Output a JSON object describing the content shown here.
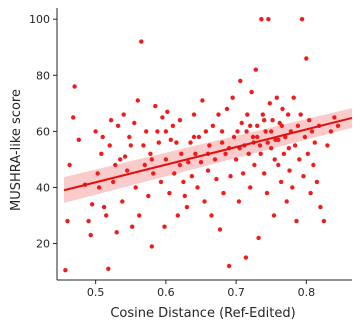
{
  "chart_data": {
    "type": "scatter",
    "xlabel": "Cosine Distance (Ref-Edited)",
    "ylabel": "MUSHRA-like score",
    "xlim": [
      0.445,
      0.865
    ],
    "ylim": [
      7,
      104
    ],
    "xticks": [
      0.5,
      0.6,
      0.7,
      0.8
    ],
    "xtick_labels": [
      "0.5",
      "0.6",
      "0.7",
      "0.8"
    ],
    "yticks": [
      20,
      40,
      60,
      80,
      100
    ],
    "ytick_labels": [
      "20",
      "40",
      "60",
      "80",
      "100"
    ],
    "grid": false,
    "point_color": "#ee1c1c",
    "line_color": "#e01010",
    "band_color": "#f4a0a0",
    "regression": {
      "x": [
        0.455,
        0.865
      ],
      "y": [
        39,
        64.8
      ],
      "ci_lower": [
        34.5,
        61.3
      ],
      "ci_upper": [
        43.7,
        68.3
      ]
    },
    "points": [
      [
        0.457,
        10.5
      ],
      [
        0.46,
        28
      ],
      [
        0.463,
        48
      ],
      [
        0.468,
        65
      ],
      [
        0.47,
        76
      ],
      [
        0.476,
        57
      ],
      [
        0.485,
        41
      ],
      [
        0.49,
        28
      ],
      [
        0.493,
        23
      ],
      [
        0.495,
        34
      ],
      [
        0.5,
        60
      ],
      [
        0.503,
        45
      ],
      [
        0.505,
        40
      ],
      [
        0.508,
        52
      ],
      [
        0.51,
        58
      ],
      [
        0.512,
        33
      ],
      [
        0.515,
        30
      ],
      [
        0.518,
        11
      ],
      [
        0.52,
        55
      ],
      [
        0.522,
        64
      ],
      [
        0.525,
        42
      ],
      [
        0.528,
        48
      ],
      [
        0.53,
        24
      ],
      [
        0.532,
        62
      ],
      [
        0.535,
        50
      ],
      [
        0.538,
        35
      ],
      [
        0.54,
        66
      ],
      [
        0.542,
        51
      ],
      [
        0.545,
        46
      ],
      [
        0.548,
        58
      ],
      [
        0.55,
        55
      ],
      [
        0.552,
        26
      ],
      [
        0.555,
        63
      ],
      [
        0.557,
        40
      ],
      [
        0.56,
        71
      ],
      [
        0.562,
        30
      ],
      [
        0.565,
        92
      ],
      [
        0.568,
        55
      ],
      [
        0.57,
        48
      ],
      [
        0.572,
        60
      ],
      [
        0.575,
        37
      ],
      [
        0.578,
        52
      ],
      [
        0.58,
        19
      ],
      [
        0.582,
        45
      ],
      [
        0.585,
        69
      ],
      [
        0.588,
        60
      ],
      [
        0.59,
        56
      ],
      [
        0.593,
        42
      ],
      [
        0.595,
        65
      ],
      [
        0.598,
        26
      ],
      [
        0.6,
        50
      ],
      [
        0.602,
        67
      ],
      [
        0.605,
        38
      ],
      [
        0.607,
        57
      ],
      [
        0.61,
        62
      ],
      [
        0.612,
        45
      ],
      [
        0.615,
        56
      ],
      [
        0.617,
        30
      ],
      [
        0.62,
        48
      ],
      [
        0.622,
        52
      ],
      [
        0.625,
        42
      ],
      [
        0.627,
        37
      ],
      [
        0.63,
        33
      ],
      [
        0.632,
        49
      ],
      [
        0.635,
        56
      ],
      [
        0.637,
        44
      ],
      [
        0.64,
        66
      ],
      [
        0.642,
        52
      ],
      [
        0.645,
        40
      ],
      [
        0.647,
        58
      ],
      [
        0.65,
        49
      ],
      [
        0.652,
        71
      ],
      [
        0.655,
        35
      ],
      [
        0.657,
        60
      ],
      [
        0.66,
        46
      ],
      [
        0.662,
        55
      ],
      [
        0.665,
        30
      ],
      [
        0.667,
        62
      ],
      [
        0.67,
        50
      ],
      [
        0.672,
        43
      ],
      [
        0.675,
        66
      ],
      [
        0.677,
        25
      ],
      [
        0.68,
        56
      ],
      [
        0.682,
        38
      ],
      [
        0.685,
        52
      ],
      [
        0.687,
        68
      ],
      [
        0.69,
        12
      ],
      [
        0.692,
        44
      ],
      [
        0.695,
        72
      ],
      [
        0.697,
        58
      ],
      [
        0.7,
        50
      ],
      [
        0.702,
        60
      ],
      [
        0.704,
        35
      ],
      [
        0.706,
        78
      ],
      [
        0.708,
        63
      ],
      [
        0.71,
        45
      ],
      [
        0.712,
        55
      ],
      [
        0.714,
        15
      ],
      [
        0.716,
        66
      ],
      [
        0.718,
        52
      ],
      [
        0.72,
        40
      ],
      [
        0.722,
        74
      ],
      [
        0.724,
        58
      ],
      [
        0.726,
        48
      ],
      [
        0.728,
        82
      ],
      [
        0.73,
        62
      ],
      [
        0.732,
        22
      ],
      [
        0.734,
        55
      ],
      [
        0.736,
        100
      ],
      [
        0.738,
        66
      ],
      [
        0.74,
        45
      ],
      [
        0.742,
        60
      ],
      [
        0.744,
        38
      ],
      [
        0.746,
        100
      ],
      [
        0.748,
        70
      ],
      [
        0.75,
        54
      ],
      [
        0.752,
        64
      ],
      [
        0.754,
        30
      ],
      [
        0.756,
        57
      ],
      [
        0.758,
        72
      ],
      [
        0.76,
        48
      ],
      [
        0.762,
        63
      ],
      [
        0.764,
        42
      ],
      [
        0.766,
        68
      ],
      [
        0.768,
        52
      ],
      [
        0.77,
        58
      ],
      [
        0.772,
        35
      ],
      [
        0.774,
        66
      ],
      [
        0.776,
        46
      ],
      [
        0.778,
        60
      ],
      [
        0.78,
        40
      ],
      [
        0.782,
        72
      ],
      [
        0.784,
        55
      ],
      [
        0.786,
        28
      ],
      [
        0.788,
        62
      ],
      [
        0.79,
        50
      ],
      [
        0.792,
        66
      ],
      [
        0.794,
        100
      ],
      [
        0.796,
        44
      ],
      [
        0.798,
        58
      ],
      [
        0.8,
        86
      ],
      [
        0.802,
        52
      ],
      [
        0.804,
        64
      ],
      [
        0.806,
        38
      ],
      [
        0.808,
        60
      ],
      [
        0.81,
        48
      ],
      [
        0.812,
        56
      ],
      [
        0.815,
        42
      ],
      [
        0.818,
        62
      ],
      [
        0.82,
        33
      ],
      [
        0.825,
        28
      ],
      [
        0.83,
        55
      ],
      [
        0.835,
        60
      ],
      [
        0.84,
        65
      ],
      [
        0.845,
        62
      ],
      [
        0.72,
        62
      ],
      [
        0.73,
        58
      ],
      [
        0.74,
        64
      ],
      [
        0.75,
        60
      ],
      [
        0.76,
        57
      ],
      [
        0.735,
        52
      ],
      [
        0.745,
        56
      ],
      [
        0.755,
        50
      ],
      [
        0.765,
        62
      ],
      [
        0.775,
        54
      ],
      [
        0.705,
        54
      ],
      [
        0.715,
        60
      ],
      [
        0.725,
        56
      ],
      [
        0.68,
        60
      ],
      [
        0.69,
        54
      ],
      [
        0.66,
        52
      ],
      [
        0.64,
        58
      ],
      [
        0.62,
        64
      ],
      [
        0.6,
        60
      ],
      [
        0.58,
        50
      ]
    ]
  }
}
